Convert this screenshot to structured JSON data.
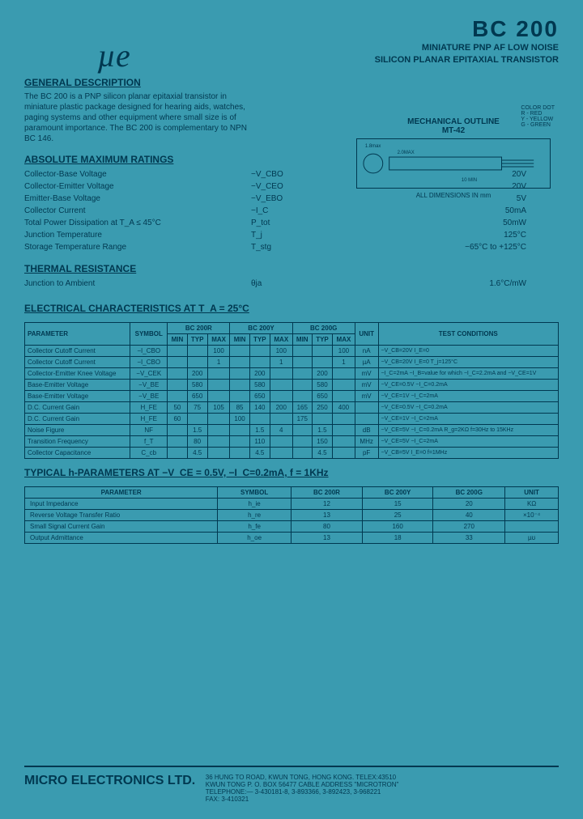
{
  "header": {
    "part": "BC 200",
    "line1": "MINIATURE PNP AF LOW NOISE",
    "line2": "SILICON PLANAR EPITAXIAL TRANSISTOR"
  },
  "logo": "µe",
  "colorLegend": {
    "title": "COLOR DOT",
    "r": "R - RED",
    "y": "Y - YELLOW",
    "g": "G - GREEN"
  },
  "mech": {
    "title": "MECHANICAL OUTLINE",
    "code": "MT-42",
    "note": "ALL DIMENSIONS IN mm"
  },
  "gendesc": {
    "title": "GENERAL DESCRIPTION",
    "text": "The BC 200 is a PNP silicon planar epitaxial transistor in miniature plastic package designed for hearing aids, watches, paging systems and other equipment where small size is of paramount importance. The BC 200 is complementary to NPN BC 146."
  },
  "amr": {
    "title": "ABSOLUTE MAXIMUM RATINGS",
    "rows": [
      {
        "l": "Collector-Base Voltage",
        "s": "−V_CBO",
        "v": "20V"
      },
      {
        "l": "Collector-Emitter Voltage",
        "s": "−V_CEO",
        "v": "20V"
      },
      {
        "l": "Emitter-Base Voltage",
        "s": "−V_EBO",
        "v": "5V"
      },
      {
        "l": "Collector Current",
        "s": "−I_C",
        "v": "50mA"
      },
      {
        "l": "Total Power Dissipation at T_A ≤ 45°C",
        "s": "P_tot",
        "v": "50mW"
      },
      {
        "l": "Junction Temperature",
        "s": "T_j",
        "v": "125°C"
      },
      {
        "l": "Storage Temperature Range",
        "s": "T_stg",
        "v": "−65°C to +125°C"
      }
    ]
  },
  "thermal": {
    "title": "THERMAL RESISTANCE",
    "l": "Junction to Ambient",
    "s": "θja",
    "v": "1.6°C/mW"
  },
  "elec": {
    "title": "ELECTRICAL CHARACTERISTICS AT T_A = 25°C",
    "variants": [
      "BC 200R",
      "BC 200Y",
      "BC 200G"
    ],
    "cols": [
      "MIN",
      "TYP",
      "MAX"
    ],
    "headers": [
      "PARAMETER",
      "SYMBOL"
    ],
    "unitH": "UNIT",
    "condH": "TEST CONDITIONS",
    "rows": [
      {
        "p": "Collector Cutoff Current",
        "s": "−I_CBO",
        "r": [
          "",
          "",
          "100"
        ],
        "y": [
          "",
          "",
          "100"
        ],
        "g": [
          "",
          "",
          "100"
        ],
        "u": "nA",
        "c": "−V_CB=20V  I_E=0"
      },
      {
        "p": "Collector Cutoff Current",
        "s": "−I_CBO",
        "r": [
          "",
          "",
          "1"
        ],
        "y": [
          "",
          "",
          "1"
        ],
        "g": [
          "",
          "",
          "1"
        ],
        "u": "µA",
        "c": "−V_CB=20V  I_E=0  T_j=125°C"
      },
      {
        "p": "Collector-Emitter Knee Voltage",
        "s": "−V_CEK",
        "r": [
          "",
          "200",
          ""
        ],
        "y": [
          "",
          "200",
          ""
        ],
        "g": [
          "",
          "200",
          ""
        ],
        "u": "mV",
        "c": "−I_C=2mA  −I_B=value for which −I_C=2.2mA and −V_CE=1V"
      },
      {
        "p": "Base-Emitter Voltage",
        "s": "−V_BE",
        "r": [
          "",
          "580",
          ""
        ],
        "y": [
          "",
          "580",
          ""
        ],
        "g": [
          "",
          "580",
          ""
        ],
        "u": "mV",
        "c": "−V_CE=0.5V  −I_C=0.2mA"
      },
      {
        "p": "Base-Emitter Voltage",
        "s": "−V_BE",
        "r": [
          "",
          "650",
          ""
        ],
        "y": [
          "",
          "650",
          ""
        ],
        "g": [
          "",
          "650",
          ""
        ],
        "u": "mV",
        "c": "−V_CE=1V  −I_C=2mA"
      },
      {
        "p": "D.C. Current Gain",
        "s": "H_FE",
        "r": [
          "50",
          "75",
          "105"
        ],
        "y": [
          "85",
          "140",
          "200"
        ],
        "g": [
          "165",
          "250",
          "400"
        ],
        "u": "",
        "c": "−V_CE=0.5V  −I_C=0.2mA"
      },
      {
        "p": "D.C. Current Gain",
        "s": "H_FE",
        "r": [
          "60",
          "",
          ""
        ],
        "y": [
          "100",
          "",
          ""
        ],
        "g": [
          "175",
          "",
          ""
        ],
        "u": "",
        "c": "−V_CE=1V  −I_C=2mA"
      },
      {
        "p": "Noise Figure",
        "s": "NF",
        "r": [
          "",
          "1.5",
          ""
        ],
        "y": [
          "",
          "1.5",
          "4"
        ],
        "g": [
          "",
          "1.5",
          ""
        ],
        "u": "dB",
        "c": "−V_CE=5V  −I_C=0.2mA  R_g=2KΩ  f=30Hz to 15KHz"
      },
      {
        "p": "Transition Frequency",
        "s": "f_T",
        "r": [
          "",
          "80",
          ""
        ],
        "y": [
          "",
          "110",
          ""
        ],
        "g": [
          "",
          "150",
          ""
        ],
        "u": "MHz",
        "c": "−V_CE=5V  −I_C=2mA"
      },
      {
        "p": "Collector Capacitance",
        "s": "C_cb",
        "r": [
          "",
          "4.5",
          ""
        ],
        "y": [
          "",
          "4.5",
          ""
        ],
        "g": [
          "",
          "4.5",
          ""
        ],
        "u": "pF",
        "c": "−V_CB=5V  I_E=0  f=1MHz"
      }
    ]
  },
  "hparam": {
    "title": "TYPICAL h-PARAMETERS AT  −V_CE = 0.5V,  −I_C=0.2mA,  f = 1KHz",
    "headers": [
      "PARAMETER",
      "SYMBOL",
      "BC 200R",
      "BC 200Y",
      "BC 200G",
      "UNIT"
    ],
    "rows": [
      {
        "p": "Input Impedance",
        "s": "h_ie",
        "r": "12",
        "y": "15",
        "g": "20",
        "u": "KΩ"
      },
      {
        "p": "Reverse Voltage Transfer Ratio",
        "s": "h_re",
        "r": "13",
        "y": "25",
        "g": "40",
        "u": "×10⁻⁴"
      },
      {
        "p": "Small Signal Current Gain",
        "s": "h_fe",
        "r": "80",
        "y": "160",
        "g": "270",
        "u": ""
      },
      {
        "p": "Output Admittance",
        "s": "h_oe",
        "r": "13",
        "y": "18",
        "g": "33",
        "u": "µʊ"
      }
    ]
  },
  "footer": {
    "company": "MICRO ELECTRONICS LTD.",
    "addr1": "36 HUNG TO ROAD, KWUN TONG, HONG KONG. TELEX:43510",
    "addr2": "KWUN TONG P. O. BOX 56477 CABLE ADDRESS \"MICROTRON\"",
    "tel": "TELEPHONE:— 3-430181-8, 3-893366, 3-892423, 3-968221",
    "fax": "FAX: 3-410321"
  }
}
